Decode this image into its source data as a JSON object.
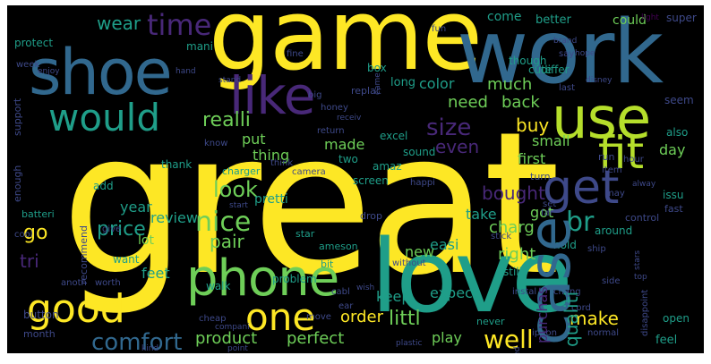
{
  "background": "#000000",
  "palette": {
    "yellow": "#fde725",
    "lime": "#b5de2b",
    "green": "#6ece58",
    "teal": "#1f9e89",
    "teal2": "#26828e",
    "blue": "#31688e",
    "indigo": "#3e4989",
    "purple": "#482878",
    "dark": "#440154"
  },
  "words": [
    {
      "text": "great",
      "color": "yellow"
    },
    {
      "text": "game",
      "color": "yellow"
    },
    {
      "text": "work",
      "color": "blue"
    },
    {
      "text": "love",
      "color": "teal"
    },
    {
      "text": "shoe",
      "color": "blue"
    },
    {
      "text": "like",
      "color": "purple"
    },
    {
      "text": "use",
      "color": "lime"
    },
    {
      "text": "phone",
      "color": "green"
    },
    {
      "text": "case",
      "color": "blue"
    },
    {
      "text": "fit",
      "color": "lime"
    },
    {
      "text": "get",
      "color": "indigo"
    },
    {
      "text": "would",
      "color": "teal"
    },
    {
      "text": "good",
      "color": "yellow"
    },
    {
      "text": "one",
      "color": "yellow"
    },
    {
      "text": "time",
      "color": "purple"
    },
    {
      "text": "nice",
      "color": "green"
    },
    {
      "text": "br",
      "color": "teal"
    },
    {
      "text": "size",
      "color": "purple"
    },
    {
      "text": "comfort",
      "color": "blue"
    },
    {
      "text": "well",
      "color": "yellow"
    },
    {
      "text": "price",
      "color": "teal"
    },
    {
      "text": "littl",
      "color": "green"
    },
    {
      "text": "look",
      "color": "green"
    },
    {
      "text": "realli",
      "color": "green"
    },
    {
      "text": "buy",
      "color": "yellow"
    },
    {
      "text": "make",
      "color": "yellow"
    },
    {
      "text": "qualiti",
      "color": "teal"
    },
    {
      "text": "bought",
      "color": "purple"
    },
    {
      "text": "order",
      "color": "yellow"
    },
    {
      "text": "pair",
      "color": "green"
    },
    {
      "text": "charg",
      "color": "green"
    },
    {
      "text": "even",
      "color": "purple"
    },
    {
      "text": "go",
      "color": "yellow"
    },
    {
      "text": "wear",
      "color": "teal"
    },
    {
      "text": "product",
      "color": "green"
    },
    {
      "text": "perfect",
      "color": "green"
    },
    {
      "text": "review",
      "color": "teal"
    },
    {
      "text": "much",
      "color": "green"
    },
    {
      "text": "need",
      "color": "green"
    },
    {
      "text": "back",
      "color": "green"
    },
    {
      "text": "purchas",
      "color": "purple"
    },
    {
      "text": "right",
      "color": "green"
    },
    {
      "text": "play",
      "color": "green"
    },
    {
      "text": "expect",
      "color": "teal"
    },
    {
      "text": "easi",
      "color": "teal"
    },
    {
      "text": "put",
      "color": "green"
    },
    {
      "text": "thing",
      "color": "green"
    },
    {
      "text": "made",
      "color": "green"
    },
    {
      "text": "color",
      "color": "teal"
    },
    {
      "text": "small",
      "color": "green"
    },
    {
      "text": "feet",
      "color": "teal"
    },
    {
      "text": "keep",
      "color": "teal"
    },
    {
      "text": "new",
      "color": "green"
    },
    {
      "text": "first",
      "color": "green"
    },
    {
      "text": "take",
      "color": "teal"
    },
    {
      "text": "got",
      "color": "green"
    },
    {
      "text": "year",
      "color": "teal"
    },
    {
      "text": "lot",
      "color": "green"
    },
    {
      "text": "day",
      "color": "green"
    },
    {
      "text": "tri",
      "color": "purple"
    },
    {
      "text": "come",
      "color": "teal"
    },
    {
      "text": "better",
      "color": "teal"
    },
    {
      "text": "could",
      "color": "green"
    },
    {
      "text": "super",
      "color": "indigo"
    },
    {
      "text": "long",
      "color": "teal"
    },
    {
      "text": "protect",
      "color": "teal"
    },
    {
      "text": "mani",
      "color": "teal"
    },
    {
      "text": "box",
      "color": "teal"
    },
    {
      "text": "though",
      "color": "teal"
    },
    {
      "text": "differ",
      "color": "teal"
    },
    {
      "text": "cute",
      "color": "teal"
    },
    {
      "text": "around",
      "color": "teal"
    },
    {
      "text": "also",
      "color": "teal"
    },
    {
      "text": "seem",
      "color": "indigo"
    },
    {
      "text": "thank",
      "color": "teal"
    },
    {
      "text": "walk",
      "color": "teal"
    },
    {
      "text": "excel",
      "color": "teal"
    },
    {
      "text": "sound",
      "color": "teal"
    },
    {
      "text": "amaz",
      "color": "teal"
    },
    {
      "text": "screen",
      "color": "teal"
    },
    {
      "text": "pretti",
      "color": "teal"
    },
    {
      "text": "two",
      "color": "teal"
    },
    {
      "text": "problem",
      "color": "teal"
    },
    {
      "text": "want",
      "color": "teal"
    },
    {
      "text": "button",
      "color": "indigo"
    },
    {
      "text": "batteri",
      "color": "teal"
    },
    {
      "text": "charger",
      "color": "teal"
    },
    {
      "text": "enough",
      "color": "indigo"
    },
    {
      "text": "support",
      "color": "indigo"
    },
    {
      "text": "recommend",
      "color": "indigo"
    },
    {
      "text": "add",
      "color": "teal"
    },
    {
      "text": "star",
      "color": "teal"
    },
    {
      "text": "bit",
      "color": "teal"
    },
    {
      "text": "still",
      "color": "teal"
    },
    {
      "text": "hold",
      "color": "teal"
    },
    {
      "text": "open",
      "color": "teal"
    },
    {
      "text": "feel",
      "color": "teal"
    },
    {
      "text": "issu",
      "color": "teal"
    },
    {
      "text": "control",
      "color": "indigo"
    },
    {
      "text": "fast",
      "color": "indigo"
    },
    {
      "text": "run",
      "color": "indigo"
    },
    {
      "text": "never",
      "color": "teal"
    },
    {
      "text": "ameson",
      "color": "teal"
    },
    {
      "text": "month",
      "color": "indigo"
    },
    {
      "text": "replac",
      "color": "indigo"
    },
    {
      "text": "honey",
      "color": "indigo"
    },
    {
      "text": "return",
      "color": "indigo"
    },
    {
      "text": "camera",
      "color": "indigo"
    },
    {
      "text": "cheap",
      "color": "indigo"
    },
    {
      "text": "happi",
      "color": "indigo"
    },
    {
      "text": "anoth",
      "color": "indigo"
    },
    {
      "text": "worth",
      "color": "indigo"
    },
    {
      "text": "without",
      "color": "indigo"
    },
    {
      "text": "cabl",
      "color": "indigo"
    },
    {
      "text": "ship",
      "color": "indigo"
    },
    {
      "text": "turn",
      "color": "indigo"
    },
    {
      "text": "drop",
      "color": "indigo"
    },
    {
      "text": "fine",
      "color": "indigo"
    },
    {
      "text": "big",
      "color": "indigo"
    },
    {
      "text": "say",
      "color": "indigo"
    },
    {
      "text": "set",
      "color": "indigo"
    },
    {
      "text": "hour",
      "color": "indigo"
    },
    {
      "text": "iphon",
      "color": "indigo"
    },
    {
      "text": "cord",
      "color": "indigo"
    },
    {
      "text": "instal",
      "color": "indigo"
    },
    {
      "text": "move",
      "color": "indigo"
    },
    {
      "text": "ear",
      "color": "indigo"
    },
    {
      "text": "give",
      "color": "indigo"
    },
    {
      "text": "cool",
      "color": "indigo"
    },
    {
      "text": "think",
      "color": "indigo"
    },
    {
      "text": "know",
      "color": "indigo"
    },
    {
      "text": "stick",
      "color": "indigo"
    },
    {
      "text": "last",
      "color": "indigo"
    },
    {
      "text": "normal",
      "color": "indigo"
    },
    {
      "text": "far",
      "color": "indigo"
    },
    {
      "text": "stars",
      "color": "indigo"
    },
    {
      "text": "item",
      "color": "indigo"
    },
    {
      "text": "side",
      "color": "indigo"
    },
    {
      "text": "week",
      "color": "indigo"
    },
    {
      "text": "may",
      "color": "indigo"
    },
    {
      "text": "chang",
      "color": "indigo"
    },
    {
      "text": "disappoint",
      "color": "indigo"
    },
    {
      "text": "fun",
      "color": "indigo"
    },
    {
      "text": "light",
      "color": "dark"
    },
    {
      "text": "enjoy",
      "color": "indigo"
    },
    {
      "text": "stand",
      "color": "indigo"
    },
    {
      "text": "receiv",
      "color": "indigo"
    },
    {
      "text": "hand",
      "color": "indigo"
    },
    {
      "text": "start",
      "color": "indigo"
    },
    {
      "text": "point",
      "color": "indigo"
    },
    {
      "text": "kind",
      "color": "indigo"
    },
    {
      "text": "wish",
      "color": "indigo"
    },
    {
      "text": "compani",
      "color": "indigo"
    },
    {
      "text": "came",
      "color": "indigo"
    },
    {
      "text": "alway",
      "color": "indigo"
    },
    {
      "text": "top",
      "color": "indigo"
    },
    {
      "text": "hope",
      "color": "indigo"
    },
    {
      "text": "need",
      "color": "indigo"
    },
    {
      "text": "plastic",
      "color": "indigo"
    },
    {
      "text": "brand",
      "color": "indigo"
    },
    {
      "text": "disney",
      "color": "indigo"
    }
  ]
}
